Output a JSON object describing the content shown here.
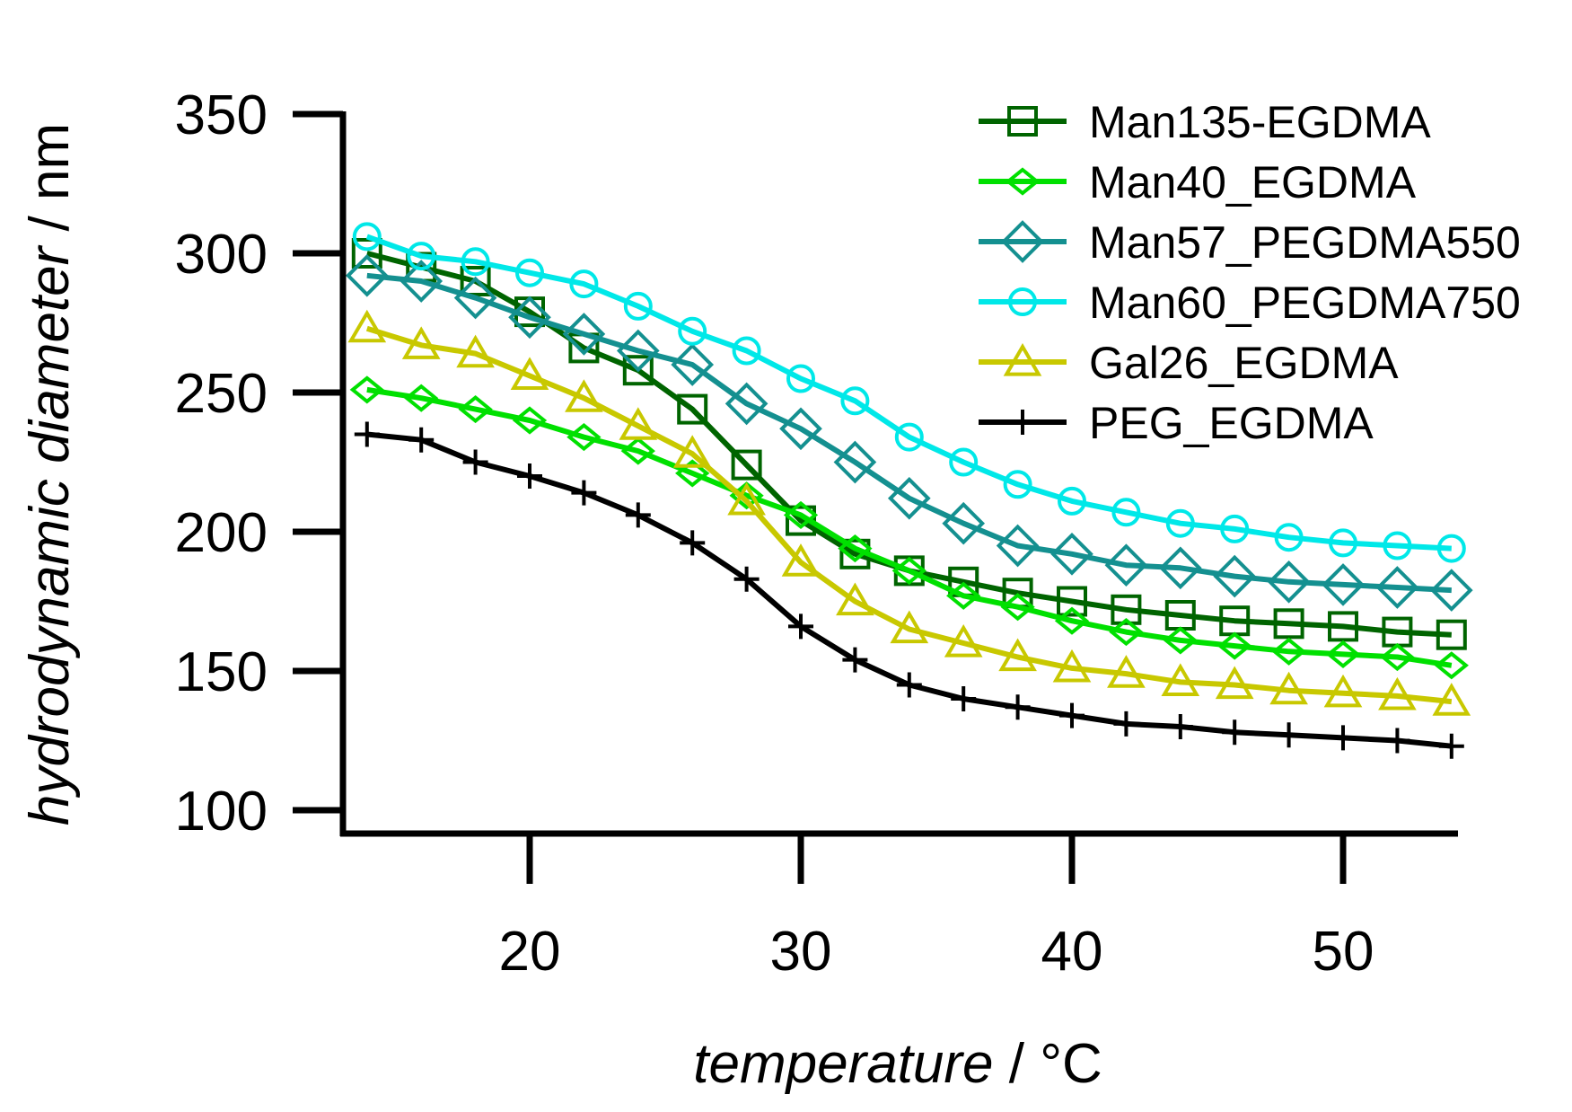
{
  "chart_data": {
    "type": "line",
    "xlabel_italic": "temperature",
    "xlabel_unit": " / °C",
    "ylabel_italic": "hydrodynamic diameter",
    "ylabel_unit": "  / nm",
    "xlim": [
      12.5,
      54.5
    ],
    "ylim": [
      92,
      350
    ],
    "x_ticks": [
      20,
      30,
      40,
      50
    ],
    "y_ticks": [
      100,
      150,
      200,
      250,
      300,
      350
    ],
    "legend_position": "top-right",
    "x": [
      14,
      16,
      18,
      20,
      22,
      24,
      26,
      28,
      30,
      32,
      34,
      36,
      38,
      40,
      42,
      44,
      46,
      48,
      50,
      52,
      54
    ],
    "series": [
      {
        "name": "Man135-EGDMA",
        "color": "#006400",
        "marker": "square",
        "values": [
          300,
          295,
          290,
          279,
          266,
          258,
          244,
          224,
          204,
          192,
          186,
          182,
          178,
          175,
          172,
          170,
          168,
          167,
          166,
          164,
          163
        ]
      },
      {
        "name": "Man40_EGDMA",
        "color": "#00e000",
        "marker": "diamond-small",
        "values": [
          251,
          248,
          244,
          240,
          234,
          229,
          221,
          213,
          206,
          194,
          186,
          177,
          173,
          168,
          164,
          161,
          159,
          157,
          156,
          155,
          152
        ]
      },
      {
        "name": "Man57_PEGDMA550",
        "color": "#149090",
        "marker": "diamond",
        "values": [
          292,
          290,
          284,
          277,
          271,
          265,
          260,
          246,
          237,
          225,
          212,
          203,
          195,
          192,
          188,
          187,
          184,
          182,
          181,
          180,
          179
        ]
      },
      {
        "name": "Man60_PEGDMA750",
        "color": "#00e8e8",
        "marker": "circle",
        "values": [
          306,
          299,
          297,
          293,
          289,
          281,
          272,
          265,
          255,
          247,
          234,
          225,
          217,
          211,
          207,
          203,
          201,
          198,
          196,
          195,
          194
        ]
      },
      {
        "name": "Gal26_EGDMA",
        "color": "#c8c800",
        "marker": "triangle",
        "values": [
          273,
          267,
          264,
          256,
          248,
          238,
          228,
          211,
          189,
          175,
          165,
          160,
          155,
          151,
          149,
          146,
          145,
          143,
          142,
          141,
          139
        ]
      },
      {
        "name": "PEG_EGDMA",
        "color": "#000000",
        "marker": "plus",
        "values": [
          235,
          233,
          225,
          220,
          214,
          206,
          196,
          183,
          166,
          154,
          145,
          140,
          137,
          134,
          131,
          130,
          128,
          127,
          126,
          125,
          123
        ]
      }
    ]
  }
}
